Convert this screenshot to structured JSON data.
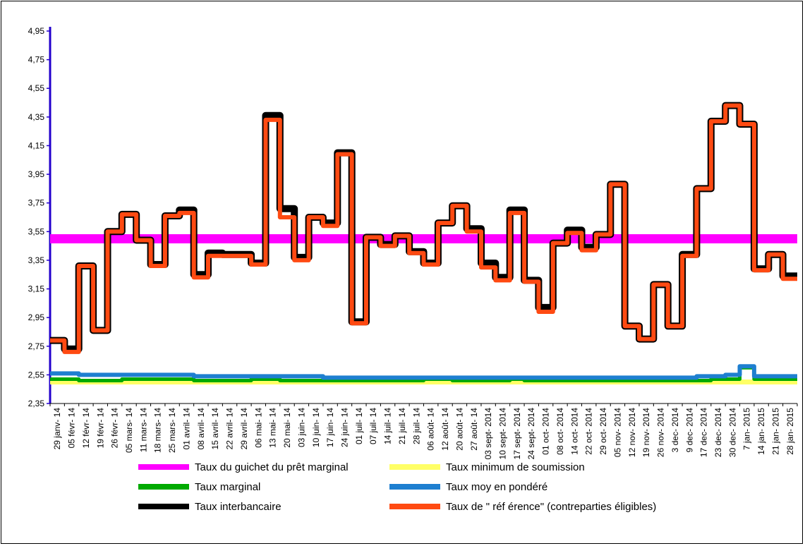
{
  "chart_data": {
    "type": "line",
    "title": "",
    "xlabel": "",
    "ylabel": "",
    "ylim": [
      2.35,
      4.95
    ],
    "y_ticks": [
      "2,35",
      "2,55",
      "2,75",
      "2,95",
      "3,15",
      "3,35",
      "3,55",
      "3,75",
      "3,95",
      "4,15",
      "4,35",
      "4,55",
      "4,75",
      "4,95"
    ],
    "grid": false,
    "legend_position": "bottom",
    "categories": [
      "29 janv- 14",
      "05 févr- 14",
      "12 févr- 14",
      "19 févr- 14",
      "26 févr- 14",
      "05 mars- 14",
      "11 mars- 14",
      "18 mars- 14",
      "25 mars- 14",
      "01 avril- 14",
      "08 avril- 14",
      "15 avril- 14",
      "22 avril- 14",
      "29 avril- 14",
      "06 mai- 14",
      "13 mai- 14",
      "20 mai- 14",
      "03 juin- 14",
      "10 juin- 14",
      "17 juin- 14",
      "24 juin- 14",
      "01 juil- 14",
      "07 juil- 14",
      "14 juil- 14",
      "21 juil- 14",
      "28 juil- 14",
      "06 août- 14",
      "12 août- 14",
      "20 août- 14",
      "27 août- 14",
      "03 sept- 2014",
      "10 sept- 2014",
      "17 sept- 2014",
      "24 sept- 2014",
      "01 oct- 2014",
      "08 oct- 2014",
      "14 oct- 2014",
      "22 oct- 2014",
      "29 oct- 2014",
      "05 nov- 2014",
      "12 nov- 2014",
      "19 nov- 2014",
      "26 nov- 2014",
      "3 dec- 2014",
      "9 dec- 2014",
      "17 dec- 2014",
      "23 dec- 2014",
      "30 dec- 2014",
      "7 jan- 2015",
      "14 jan- 2015",
      "21 jan- 2015",
      "28 jan- 2015"
    ],
    "series": [
      {
        "name": "Taux du guichet du prêt marginal",
        "color": "#FF00FF",
        "width": 13,
        "values": [
          3.5,
          3.5,
          3.5,
          3.5,
          3.5,
          3.5,
          3.5,
          3.5,
          3.5,
          3.5,
          3.5,
          3.5,
          3.5,
          3.5,
          3.5,
          3.5,
          3.5,
          3.5,
          3.5,
          3.5,
          3.5,
          3.5,
          3.5,
          3.5,
          3.5,
          3.5,
          3.5,
          3.5,
          3.5,
          3.5,
          3.5,
          3.5,
          3.5,
          3.5,
          3.5,
          3.5,
          3.5,
          3.5,
          3.5,
          3.5,
          3.5,
          3.5,
          3.5,
          3.5,
          3.5,
          3.5,
          3.5,
          3.5,
          3.5,
          3.5,
          3.5,
          3.5
        ]
      },
      {
        "name": "Taux minimum de soumission",
        "color": "#FFFF66",
        "width": 7,
        "values": [
          2.5,
          2.5,
          2.5,
          2.5,
          2.5,
          2.5,
          2.5,
          2.5,
          2.5,
          2.5,
          2.5,
          2.5,
          2.5,
          2.5,
          2.5,
          2.5,
          2.5,
          2.5,
          2.5,
          2.5,
          2.5,
          2.5,
          2.5,
          2.5,
          2.5,
          2.5,
          2.5,
          2.5,
          2.5,
          2.5,
          2.5,
          2.5,
          2.5,
          2.5,
          2.5,
          2.5,
          2.5,
          2.5,
          2.5,
          2.5,
          2.5,
          2.5,
          2.5,
          2.5,
          2.5,
          2.5,
          2.5,
          2.5,
          2.5,
          2.5,
          2.5,
          2.5
        ]
      },
      {
        "name": "Taux marginal",
        "color": "#00AA00",
        "width": 5,
        "values": [
          2.52,
          2.52,
          2.51,
          2.51,
          2.51,
          2.52,
          2.52,
          2.52,
          2.52,
          2.52,
          2.51,
          2.51,
          2.51,
          2.51,
          2.52,
          2.52,
          2.51,
          2.51,
          2.51,
          2.51,
          2.51,
          2.51,
          2.51,
          2.51,
          2.51,
          2.51,
          2.52,
          2.52,
          2.51,
          2.51,
          2.51,
          2.51,
          2.52,
          2.51,
          2.51,
          2.51,
          2.51,
          2.51,
          2.51,
          2.51,
          2.51,
          2.51,
          2.51,
          2.51,
          2.51,
          2.51,
          2.52,
          2.52,
          2.6,
          2.52,
          2.52,
          2.52
        ]
      },
      {
        "name": "Taux moyen pondéré",
        "color": "#1E7FD0",
        "width": 6,
        "values": [
          2.56,
          2.56,
          2.55,
          2.55,
          2.55,
          2.55,
          2.55,
          2.55,
          2.55,
          2.55,
          2.54,
          2.54,
          2.54,
          2.54,
          2.54,
          2.54,
          2.54,
          2.54,
          2.54,
          2.53,
          2.53,
          2.53,
          2.53,
          2.53,
          2.53,
          2.53,
          2.53,
          2.53,
          2.53,
          2.53,
          2.53,
          2.53,
          2.53,
          2.53,
          2.53,
          2.53,
          2.53,
          2.53,
          2.53,
          2.53,
          2.53,
          2.53,
          2.53,
          2.53,
          2.53,
          2.54,
          2.54,
          2.55,
          2.61,
          2.54,
          2.54,
          2.54
        ]
      },
      {
        "name": "Taux interbancaire",
        "color": "#000000",
        "width": 10,
        "values": [
          2.79,
          2.73,
          3.31,
          2.86,
          3.55,
          3.67,
          3.49,
          3.32,
          3.66,
          3.7,
          3.25,
          3.4,
          3.39,
          3.39,
          3.33,
          4.36,
          3.71,
          3.37,
          3.65,
          3.61,
          4.1,
          2.92,
          3.51,
          3.46,
          3.52,
          3.41,
          3.33,
          3.61,
          3.73,
          3.57,
          3.33,
          3.23,
          3.7,
          3.21,
          3.02,
          3.47,
          3.56,
          3.44,
          3.53,
          3.88,
          2.89,
          2.8,
          3.18,
          2.89,
          3.39,
          3.85,
          4.32,
          4.43,
          4.3,
          3.29,
          3.39,
          3.24
        ]
      },
      {
        "name": "Taux de \" référence\" (contreparties éligibles)",
        "color": "#FF4A12",
        "width": 6,
        "values": [
          2.79,
          2.71,
          3.31,
          2.86,
          3.55,
          3.67,
          3.49,
          3.31,
          3.66,
          3.68,
          3.23,
          3.38,
          3.38,
          3.38,
          3.32,
          4.33,
          3.65,
          3.35,
          3.65,
          3.59,
          4.09,
          2.91,
          3.51,
          3.45,
          3.52,
          3.4,
          3.32,
          3.61,
          3.73,
          3.55,
          3.3,
          3.21,
          3.68,
          3.2,
          2.99,
          3.47,
          3.54,
          3.42,
          3.53,
          3.88,
          2.89,
          2.8,
          3.18,
          2.89,
          3.38,
          3.85,
          4.32,
          4.43,
          4.3,
          3.28,
          3.39,
          3.22
        ]
      }
    ],
    "legend": [
      {
        "label": "Taux du guichet du prêt marginal",
        "color": "#FF00FF"
      },
      {
        "label": "Taux minimum de soumission",
        "color": "#FFFF66"
      },
      {
        "label": "Taux marginal",
        "color": "#00AA00"
      },
      {
        "label": "Taux moy en pondéré",
        "color": "#1E7FD0"
      },
      {
        "label": "Taux interbancaire",
        "color": "#000000"
      },
      {
        "label": "Taux de  \" réf érence\" (contreparties éligibles)",
        "color": "#FF4A12"
      }
    ]
  }
}
